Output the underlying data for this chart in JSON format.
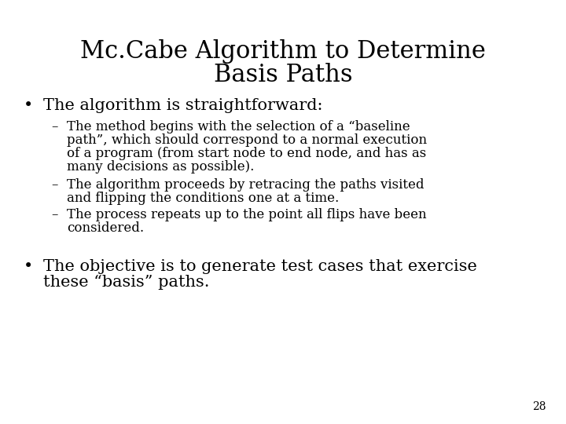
{
  "title_line1": "Mc.Cabe Algorithm to Determine",
  "title_line2": "Basis Paths",
  "bullet1": "The algorithm is straightforward:",
  "sub1_line1": "The method begins with the selection of a “baseline",
  "sub1_line2": "path”, which should correspond to a normal execution",
  "sub1_line3": "of a program (from start node to end node, and has as",
  "sub1_line4": "many decisions as possible).",
  "sub2_line1": "The algorithm proceeds by retracing the paths visited",
  "sub2_line2": "and flipping the conditions one at a time.",
  "sub3_line1": "The process repeats up to the point all flips have been",
  "sub3_line2": "considered.",
  "bullet2_line1": "The objective is to generate test cases that exercise",
  "bullet2_line2": "these “basis” paths.",
  "page_number": "28",
  "bg_color": "#ffffff",
  "text_color": "#000000",
  "title_fontsize": 22,
  "bullet_fontsize": 15,
  "sub_fontsize": 12,
  "page_fontsize": 10
}
